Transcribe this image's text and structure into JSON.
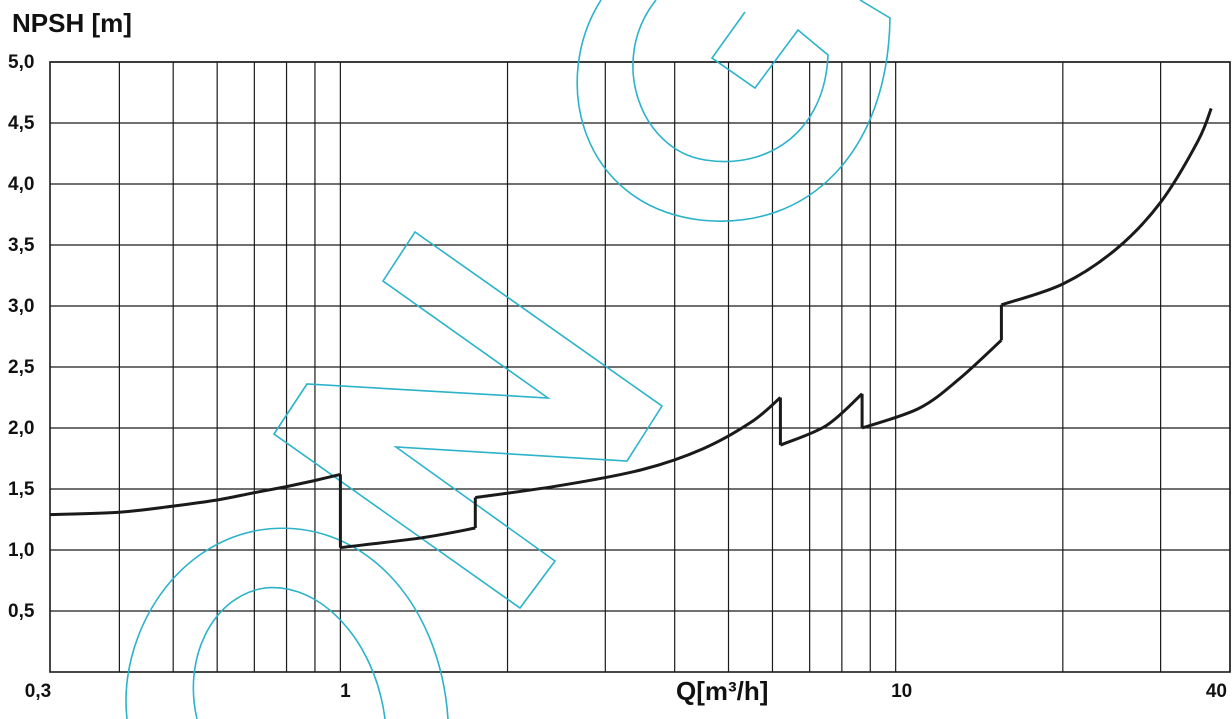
{
  "chart_data": {
    "type": "line",
    "title": "",
    "ylabel": "NPSH [m]",
    "xlabel": "Q[m³/h]",
    "x_scale": "log",
    "xlim": [
      0.3,
      40
    ],
    "ylim": [
      0,
      5.0
    ],
    "grid": true,
    "y_ticks": [
      {
        "value": 0.5,
        "label": "0,5"
      },
      {
        "value": 1.0,
        "label": "1,0"
      },
      {
        "value": 1.5,
        "label": "1,5"
      },
      {
        "value": 2.0,
        "label": "2,0"
      },
      {
        "value": 2.5,
        "label": "2,5"
      },
      {
        "value": 3.0,
        "label": "3,0"
      },
      {
        "value": 3.5,
        "label": "3,5"
      },
      {
        "value": 4.0,
        "label": "4,0"
      },
      {
        "value": 4.5,
        "label": "4,5"
      },
      {
        "value": 5.0,
        "label": "5,0"
      }
    ],
    "x_ticks": [
      {
        "value": 0.3,
        "label": "0,3"
      },
      {
        "value": 1,
        "label": "1"
      },
      {
        "value": 10,
        "label": "10"
      },
      {
        "value": 40,
        "label": "40"
      }
    ],
    "x_gridlines": [
      0.4,
      0.5,
      0.6,
      0.7,
      0.8,
      0.9,
      1,
      2,
      3,
      4,
      5,
      6,
      7,
      8,
      9,
      10,
      20,
      30,
      40
    ],
    "series": [
      {
        "name": "",
        "color": "#1a1a1a",
        "segments": [
          {
            "x": [
              0.3,
              0.4,
              0.5,
              0.6,
              0.7,
              0.8,
              0.9,
              1.0
            ],
            "y": [
              1.29,
              1.31,
              1.36,
              1.41,
              1.47,
              1.52,
              1.57,
              1.62
            ]
          },
          {
            "x": [
              1.0,
              1.0
            ],
            "y": [
              1.62,
              1.02
            ]
          },
          {
            "x": [
              1.0,
              1.4,
              1.75
            ],
            "y": [
              1.02,
              1.1,
              1.18
            ]
          },
          {
            "x": [
              1.75,
              1.75
            ],
            "y": [
              1.18,
              1.43
            ]
          },
          {
            "x": [
              1.75,
              2.5,
              3.5,
              4.5,
              5.5,
              6.2
            ],
            "y": [
              1.43,
              1.53,
              1.66,
              1.83,
              2.05,
              2.25
            ]
          },
          {
            "x": [
              6.2,
              6.2
            ],
            "y": [
              2.25,
              1.86
            ]
          },
          {
            "x": [
              6.2,
              7.5,
              8.7
            ],
            "y": [
              1.86,
              2.02,
              2.28
            ]
          },
          {
            "x": [
              8.7,
              8.7
            ],
            "y": [
              2.28,
              2.0
            ]
          },
          {
            "x": [
              8.7,
              11,
              13,
              15.5
            ],
            "y": [
              2.0,
              2.16,
              2.4,
              2.72
            ]
          },
          {
            "x": [
              15.5,
              15.5
            ],
            "y": [
              2.72,
              3.01
            ]
          },
          {
            "x": [
              15.5,
              20,
              25,
              30,
              35,
              37
            ],
            "y": [
              3.01,
              3.18,
              3.47,
              3.85,
              4.35,
              4.62
            ]
          }
        ]
      }
    ]
  },
  "watermark": {
    "name": "OMG logo watermark",
    "color": "#2ab3c9"
  }
}
